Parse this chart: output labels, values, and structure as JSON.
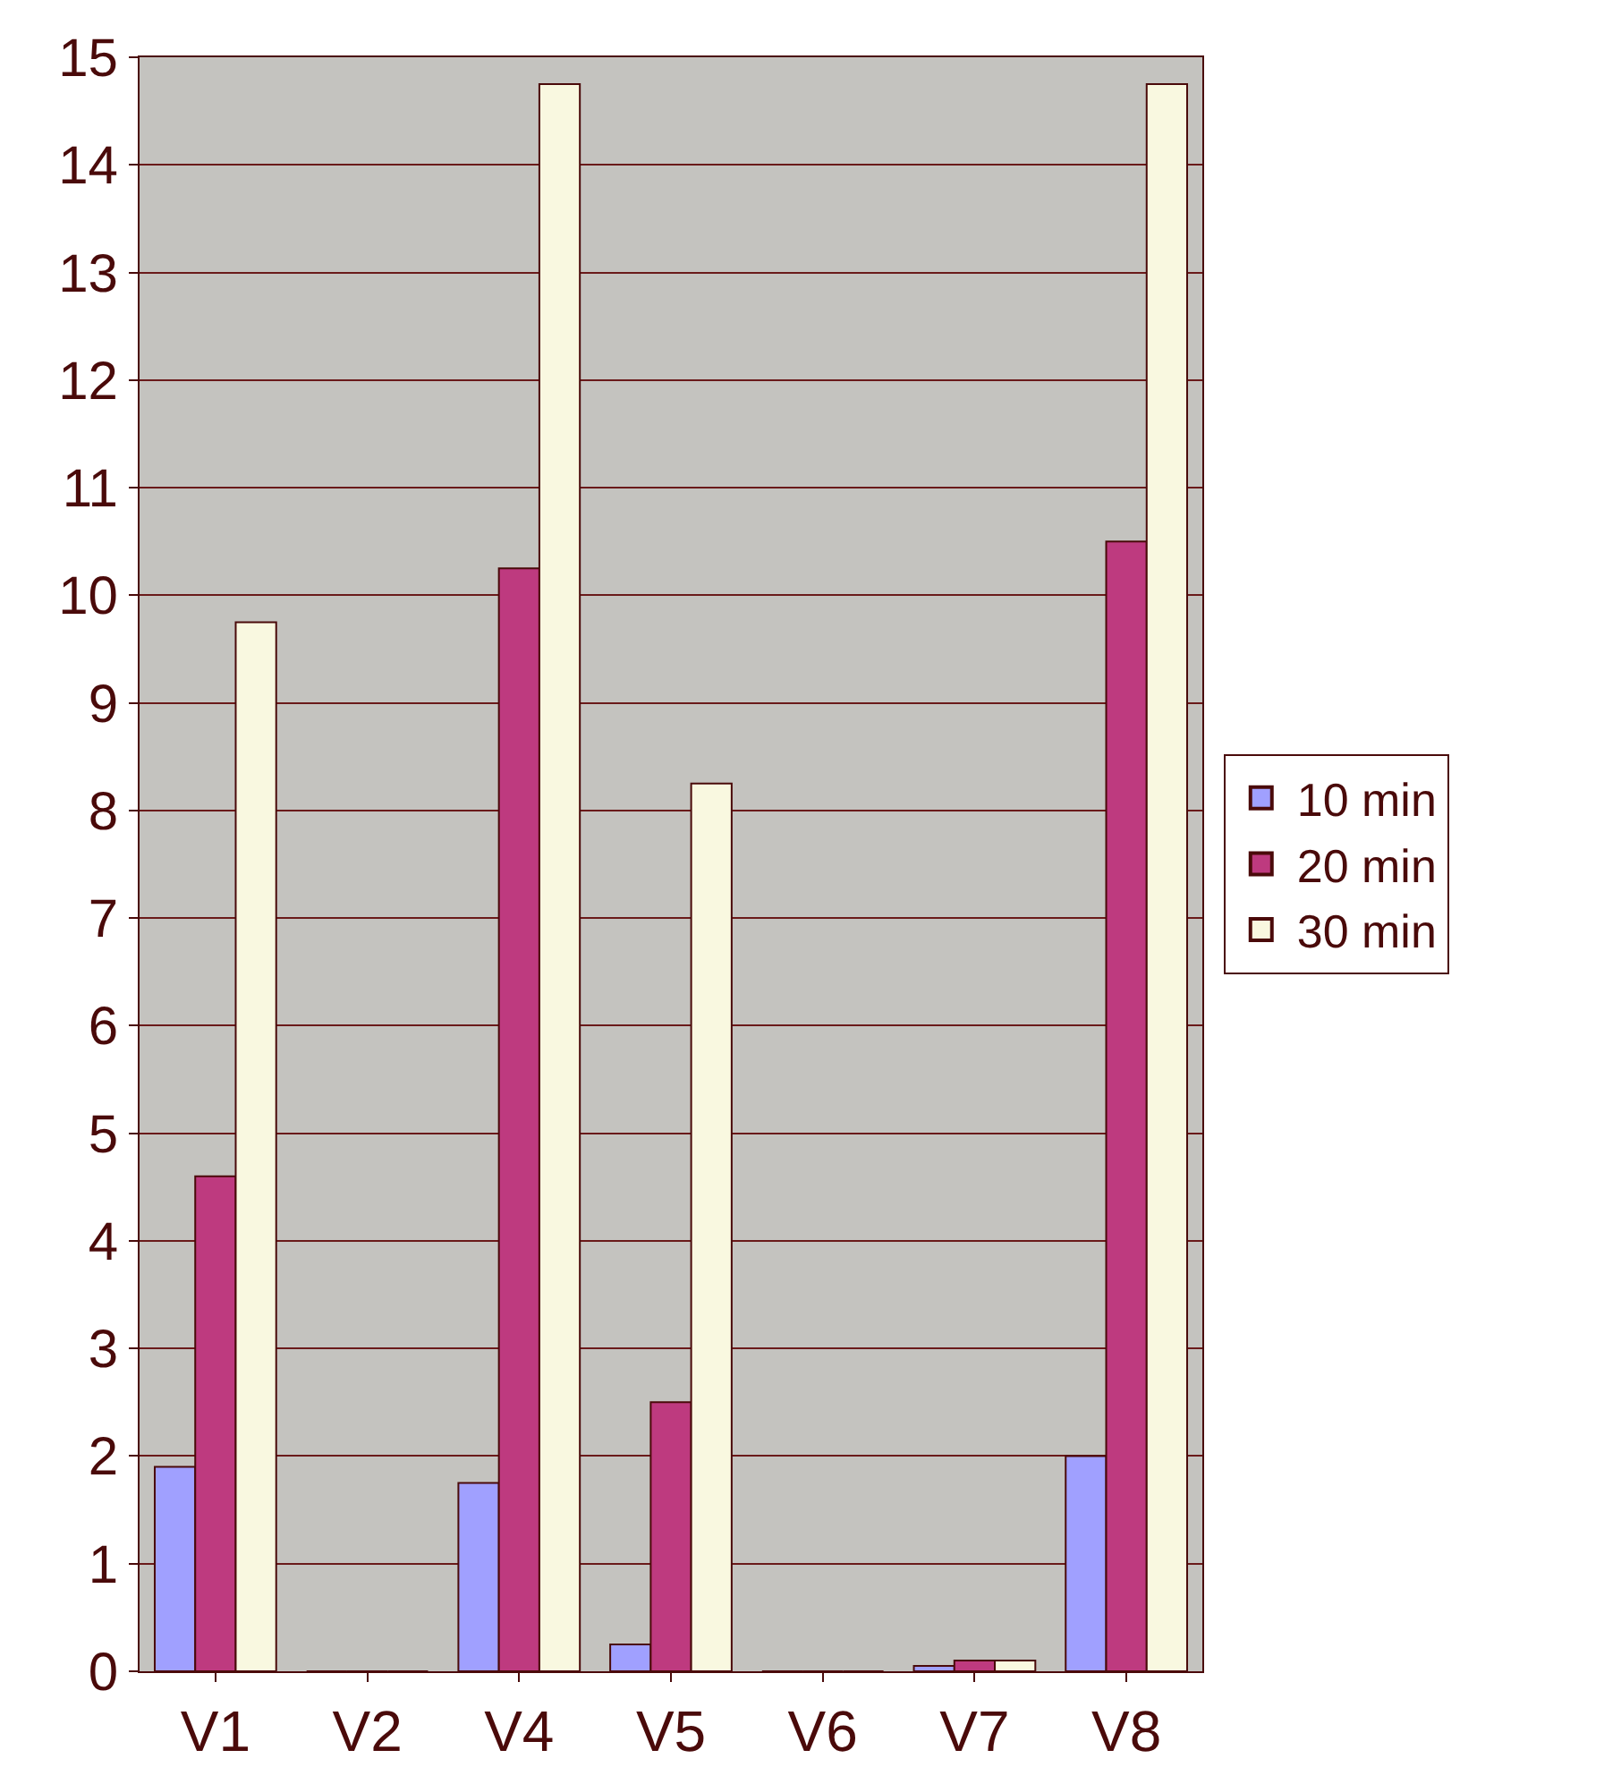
{
  "chart_data": {
    "type": "bar",
    "categories": [
      "V1",
      "V2",
      "V4",
      "V5",
      "V6",
      "V7",
      "V8"
    ],
    "series": [
      {
        "name": "10 min",
        "color": "#a0a0ff",
        "values": [
          1.9,
          0,
          1.75,
          0.25,
          0,
          0.05,
          2.0
        ]
      },
      {
        "name": "20 min",
        "color": "#be3a7f",
        "values": [
          4.6,
          0,
          10.25,
          2.5,
          0,
          0.1,
          10.5
        ]
      },
      {
        "name": "30 min",
        "color": "#f9f8e0",
        "values": [
          9.75,
          0,
          14.75,
          8.25,
          0,
          0.1,
          14.75
        ]
      }
    ],
    "ylim": [
      0,
      15
    ],
    "yticks": [
      0,
      1,
      2,
      3,
      4,
      5,
      6,
      7,
      8,
      9,
      10,
      11,
      12,
      13,
      14,
      15
    ],
    "grid": "y",
    "legend": "right"
  }
}
